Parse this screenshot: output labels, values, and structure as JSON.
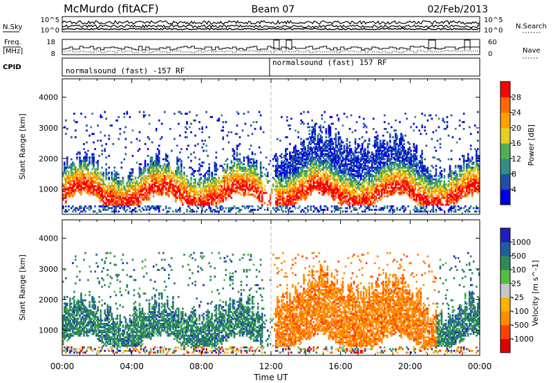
{
  "header": {
    "station": "McMurdo (fitACF)",
    "beam": "Beam 07",
    "date": "02/Feb/2013"
  },
  "top_panels": {
    "nsky_label": "N.Sky",
    "nsearch_label": "N.Search",
    "nsky_ticks": [
      "10^5",
      "10^0"
    ],
    "nsearch_ticks": [
      "10^5",
      "10^0"
    ],
    "freq_label_1": "Freq.",
    "freq_label_2": "[MHz]",
    "freq_ticks": [
      "18",
      "8"
    ],
    "nave_label": "Nave",
    "nave_ticks": [
      "60",
      "0"
    ],
    "cpid_label": "CPID",
    "cpid_1": "normalsound (fast) -157 RF",
    "cpid_2": "normalsound (fast) 157 RF"
  },
  "colors": {
    "power_scale": [
      "#0000e6",
      "#1f4fa8",
      "#2f8f86",
      "#4fb04f",
      "#e8d020",
      "#ffa000",
      "#ff6a00",
      "#ff0000"
    ],
    "velocity_scale": [
      "#e00000",
      "#ff4000",
      "#ff8c00",
      "#ffb000",
      "#c8c8c8",
      "#50c040",
      "#2e8b57",
      "#1f5fa0",
      "#2020c0"
    ]
  },
  "chart_data": [
    {
      "type": "heatmap",
      "title": "",
      "xlabel": "",
      "ylabel": "Slant Range [km]",
      "x_ticks": [
        "00:00",
        "04:00",
        "08:00",
        "12:00",
        "16:00",
        "20:00",
        "00:00"
      ],
      "xlim_hours": [
        0,
        24
      ],
      "y_ticks": [
        1000,
        2000,
        3000,
        4000
      ],
      "ylim": [
        180,
        4600
      ],
      "colorbar": {
        "label": "Power [dB]",
        "ticks": [
          4,
          8,
          12,
          16,
          20,
          24,
          28
        ],
        "range": [
          0,
          32
        ]
      }
    },
    {
      "type": "heatmap",
      "title": "",
      "xlabel": "Time UT",
      "ylabel": "Slant Range [km]",
      "x_ticks": [
        "00:00",
        "04:00",
        "08:00",
        "12:00",
        "16:00",
        "20:00",
        "00:00"
      ],
      "xlim_hours": [
        0,
        24
      ],
      "y_ticks": [
        1000,
        2000,
        3000,
        4000
      ],
      "ylim": [
        180,
        4600
      ],
      "colorbar": {
        "label": "Velocity [m s^-1]",
        "ticks": [
          "1000",
          "500",
          "100",
          "25",
          "-25",
          "-100",
          "-500",
          "-1000"
        ]
      }
    }
  ]
}
